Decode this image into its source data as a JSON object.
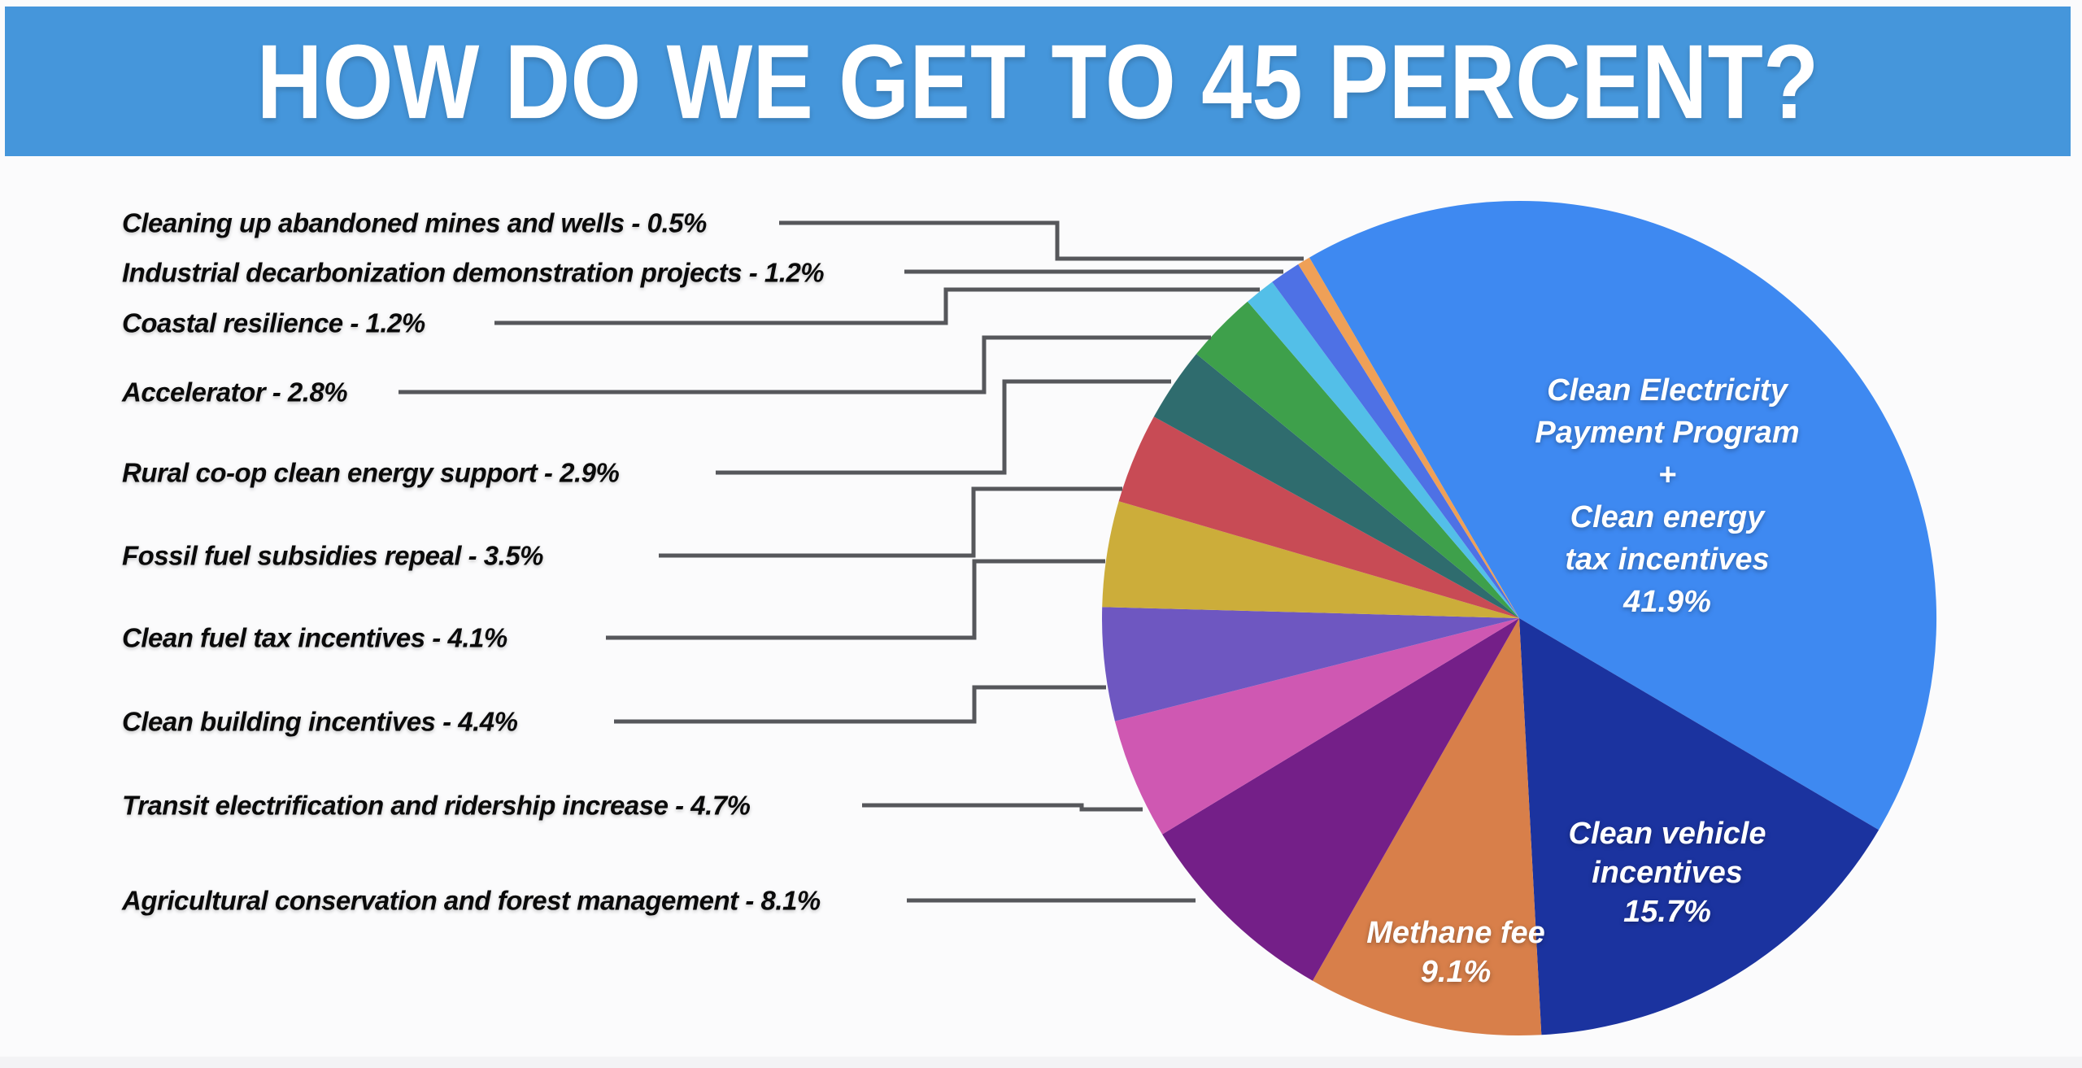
{
  "banner": {
    "title": "HOW DO WE GET TO 45 PERCENT?"
  },
  "theme": {
    "banner_bg": "#4596DB",
    "page_bg": "#FBFBFC",
    "leader_line": "#56575B",
    "callout_text_color": "#0A0A0A",
    "inside_text_color": "#FFFFFF"
  },
  "chart_data": {
    "type": "pie",
    "title": "HOW DO WE GET TO 45 PERCENT?",
    "start_angle_deg": -30.2,
    "direction": "clockwise",
    "legend_position": "none",
    "slices": [
      {
        "label": "Clean Electricity Payment Program + Clean energy tax incentives",
        "value": 41.9,
        "color": "#3E89F1"
      },
      {
        "label": "Clean vehicle incentives",
        "value": 15.7,
        "color": "#1B339F"
      },
      {
        "label": "Methane fee",
        "value": 9.1,
        "color": "#D87F4A"
      },
      {
        "label": "Agricultural conservation and forest management",
        "value": 8.1,
        "color": "#741F88"
      },
      {
        "label": "Transit electrification and ridership increase",
        "value": 4.7,
        "color": "#CF58B2"
      },
      {
        "label": "Clean building incentives",
        "value": 4.4,
        "color": "#6E57C1"
      },
      {
        "label": "Clean fuel tax incentives",
        "value": 4.1,
        "color": "#CCAD3A"
      },
      {
        "label": "Fossil fuel subsidies repeal",
        "value": 3.5,
        "color": "#C84B55"
      },
      {
        "label": "Rural co-op clean energy support",
        "value": 2.9,
        "color": "#2F6C6E"
      },
      {
        "label": "Accelerator",
        "value": 2.8,
        "color": "#3EA04B"
      },
      {
        "label": "Coastal resilience",
        "value": 1.2,
        "color": "#53BFE8"
      },
      {
        "label": "Industrial decarbonization demonstration projects",
        "value": 1.2,
        "color": "#4E71E5"
      },
      {
        "label": "Cleaning up abandoned mines and wells",
        "value": 0.5,
        "color": "#EFA057"
      }
    ],
    "inside_labels": [
      {
        "slice_index": 0,
        "lines": [
          "Clean Electricity",
          "Payment Program",
          "+",
          "Clean energy",
          "tax incentives",
          "41.9%"
        ]
      },
      {
        "slice_index": 1,
        "lines": [
          "Clean vehicle",
          "incentives",
          "15.7%"
        ]
      },
      {
        "slice_index": 2,
        "lines": [
          "Methane fee",
          "9.1%"
        ]
      }
    ],
    "callout_labels": [
      {
        "slice_index": 12,
        "text": "Cleaning up abandoned mines and wells - 0.5%"
      },
      {
        "slice_index": 11,
        "text": "Industrial decarbonization demonstration projects - 1.2%"
      },
      {
        "slice_index": 10,
        "text": "Coastal resilience - 1.2%"
      },
      {
        "slice_index": 9,
        "text": "Accelerator - 2.8%"
      },
      {
        "slice_index": 8,
        "text": "Rural co-op clean energy support  - 2.9%"
      },
      {
        "slice_index": 7,
        "text": "Fossil fuel subsidies repeal - 3.5%"
      },
      {
        "slice_index": 6,
        "text": "Clean fuel tax incentives - 4.1%"
      },
      {
        "slice_index": 5,
        "text": "Clean building incentives - 4.4%"
      },
      {
        "slice_index": 4,
        "text": "Transit electrification and ridership increase - 4.7%"
      },
      {
        "slice_index": 3,
        "text": "Agricultural conservation and forest management - 8.1%"
      }
    ]
  }
}
